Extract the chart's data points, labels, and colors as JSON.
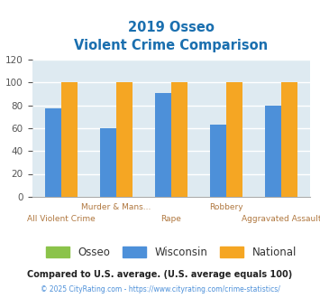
{
  "title_line1": "2019 Osseo",
  "title_line2": "Violent Crime Comparison",
  "categories": [
    "All Violent Crime",
    "Murder & Mans...",
    "Rape",
    "Robbery",
    "Aggravated Assault"
  ],
  "top_labels": [
    "",
    "Murder & Mans...",
    "",
    "Robbery",
    ""
  ],
  "bottom_labels": [
    "All Violent Crime",
    "",
    "Rape",
    "",
    "Aggravated Assault"
  ],
  "osseo_values": [
    0,
    0,
    0,
    0,
    0
  ],
  "wisconsin_values": [
    77,
    60,
    91,
    63,
    80
  ],
  "national_values": [
    100,
    100,
    100,
    100,
    100
  ],
  "osseo_color": "#8bc34a",
  "wisconsin_color": "#4d90d9",
  "national_color": "#f5a623",
  "title_color": "#1a6faf",
  "bg_color": "#deeaf1",
  "ylim": [
    0,
    120
  ],
  "yticks": [
    0,
    20,
    40,
    60,
    80,
    100,
    120
  ],
  "footnote1": "Compared to U.S. average. (U.S. average equals 100)",
  "footnote2": "© 2025 CityRating.com - https://www.cityrating.com/crime-statistics/",
  "footnote1_color": "#222222",
  "footnote2_color": "#4d90d9",
  "label_color": "#b07840",
  "legend_labels": [
    "Osseo",
    "Wisconsin",
    "National"
  ],
  "legend_text_color": "#333333"
}
